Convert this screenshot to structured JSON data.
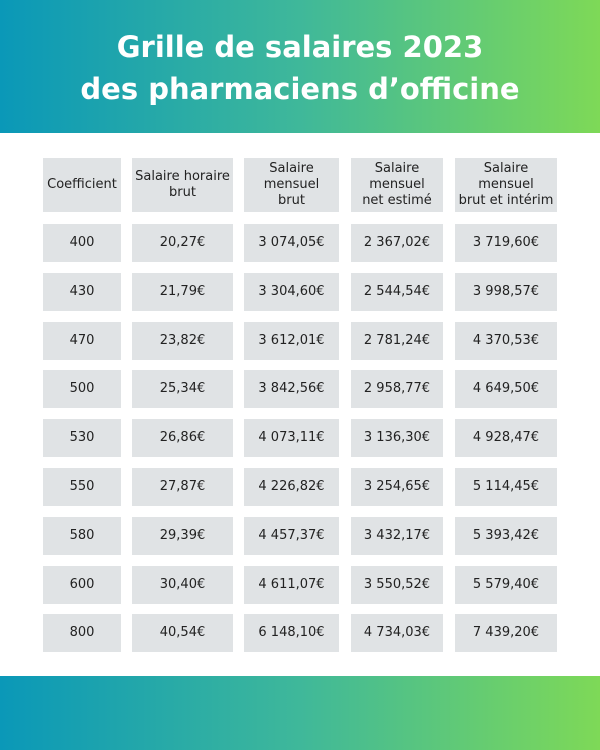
{
  "header": {
    "title": [
      "Grille de salaires 2023",
      "des pharmaciens d’officine"
    ]
  },
  "table": {
    "columns": [
      "Coefficient",
      "Salaire horaire\nbrut",
      "Salaire\nmensuel\nbrut",
      "Salaire\nmensuel\nnet estimé",
      "Salaire\nmensuel\nbrut et intérim"
    ],
    "rows": [
      [
        "400",
        "20,27€",
        "3 074,05€",
        "2 367,02€",
        "3 719,60€"
      ],
      [
        "430",
        "21,79€",
        "3 304,60€",
        "2 544,54€",
        "3 998,57€"
      ],
      [
        "470",
        "23,82€",
        "3 612,01€",
        "2 781,24€",
        "4 370,53€"
      ],
      [
        "500",
        "25,34€",
        "3 842,56€",
        "2 958,77€",
        "4 649,50€"
      ],
      [
        "530",
        "26,86€",
        "4 073,11€",
        "3 136,30€",
        "4 928,47€"
      ],
      [
        "550",
        "27,87€",
        "4 226,82€",
        "3 254,65€",
        "5 114,45€"
      ],
      [
        "580",
        "29,39€",
        "4 457,37€",
        "3 432,17€",
        "5 393,42€"
      ],
      [
        "600",
        "30,40€",
        "4 611,07€",
        "3 550,52€",
        "5 579,40€"
      ],
      [
        "800",
        "40,54€",
        "6 148,10€",
        "4 734,03€",
        "7 439,20€"
      ]
    ]
  }
}
